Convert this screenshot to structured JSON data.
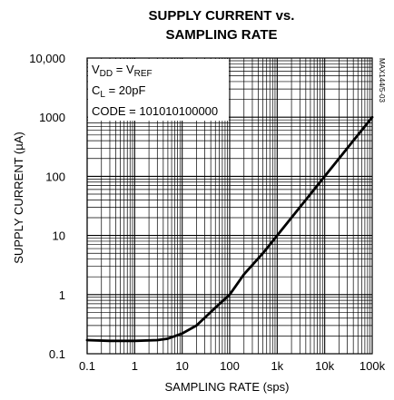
{
  "chart_data": {
    "type": "line",
    "title_line1": "SUPPLY CURRENT vs.",
    "title_line2": "SAMPLING RATE",
    "xlabel": "SAMPLING RATE (sps)",
    "ylabel": "SUPPLY CURRENT (µA)",
    "xscale": "log",
    "yscale": "log",
    "xlim": [
      0.1,
      100000
    ],
    "ylim": [
      0.1,
      10000
    ],
    "x_ticks": [
      0.1,
      1,
      10,
      100,
      1000,
      10000,
      100000
    ],
    "x_tick_labels": [
      "0.1",
      "1",
      "10",
      "100",
      "1k",
      "10k",
      "100k"
    ],
    "y_ticks": [
      0.1,
      1,
      10,
      100,
      1000,
      10000
    ],
    "y_tick_labels": [
      "0.1",
      "1",
      "10",
      "100",
      "1000",
      "10,000"
    ],
    "grid": true,
    "legend_lines": [
      "VDD = VREF",
      "CL = 20pF",
      "CODE = 101010100000"
    ],
    "legend_placement": "top-left",
    "figure_id": "MAX144/5-03",
    "series": [
      {
        "x": [
          0.1,
          0.3,
          1,
          3,
          5,
          10,
          20,
          50,
          100,
          200,
          500,
          1000,
          3000,
          10000,
          30000,
          100000
        ],
        "values": [
          0.17,
          0.165,
          0.165,
          0.17,
          0.18,
          0.22,
          0.3,
          0.6,
          1.0,
          2.2,
          5,
          10,
          30,
          100,
          300,
          1000
        ]
      }
    ]
  }
}
